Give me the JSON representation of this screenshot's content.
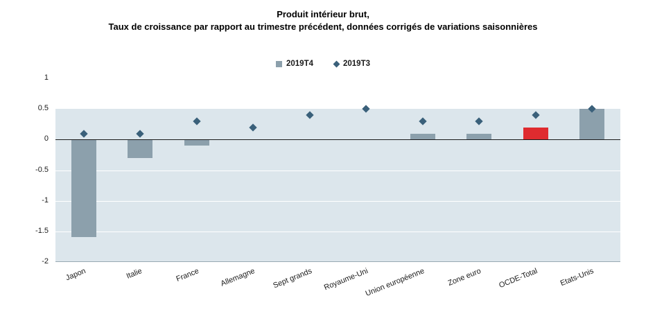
{
  "title": {
    "line1": "Produit intérieur brut,",
    "line2": "Taux de croissance par rapport au trimestre précédent, données corrigés de variations saisonnières"
  },
  "legend": [
    {
      "label": "2019T4",
      "marker": "square"
    },
    {
      "label": "2019T3",
      "marker": "diamond"
    }
  ],
  "chart_data": {
    "type": "bar",
    "title": "Produit intérieur brut, Taux de croissance par rapport au trimestre précédent, données corrigés de variations saisonnières",
    "categories": [
      "Japon",
      "Italie",
      "France",
      "Allemagne",
      "Sept grands",
      "Royaume-Uni",
      "Union européenne",
      "Zone euro",
      "OCDE-Total",
      "Etats-Unis"
    ],
    "series": [
      {
        "name": "2019T4",
        "type": "bar",
        "values": [
          -1.6,
          -0.3,
          -0.1,
          0,
          0,
          0,
          0.1,
          0.1,
          0.2,
          0.5
        ]
      },
      {
        "name": "2019T3",
        "type": "scatter",
        "marker": "diamond",
        "values": [
          0.1,
          0.1,
          0.3,
          0.2,
          0.4,
          0.5,
          0.3,
          0.3,
          0.4,
          0.5
        ]
      }
    ],
    "xlabel": "",
    "ylabel": "",
    "ylim": [
      -2,
      1
    ],
    "yticks": [
      {
        "value": 1,
        "label": "1"
      },
      {
        "value": 0.5,
        "label": "0.5"
      },
      {
        "value": 0,
        "label": "0"
      },
      {
        "value": -0.5,
        "label": "-0.5"
      },
      {
        "value": -1,
        "label": "-1"
      },
      {
        "value": -1.5,
        "label": "-1.5"
      },
      {
        "value": -2,
        "label": "-2"
      }
    ],
    "grid": true,
    "legend_position": "top",
    "band_split_value": 0.5,
    "bar_colors": [
      "#8CA0AC",
      "#8CA0AC",
      "#8CA0AC",
      "#8CA0AC",
      "#8CA0AC",
      "#8CA0AC",
      "#8CA0AC",
      "#8CA0AC",
      "#DF2B2F",
      "#8CA0AC"
    ],
    "colors": {
      "bar": "#8CA0AC",
      "bar_highlight": "#DF2B2F",
      "diamond": "#3A607A",
      "plot_background": "#DCE6EC",
      "gridline": "#FFFFFF",
      "zero_line": "#1A1A1A",
      "baseline": "#98A8B2"
    }
  }
}
